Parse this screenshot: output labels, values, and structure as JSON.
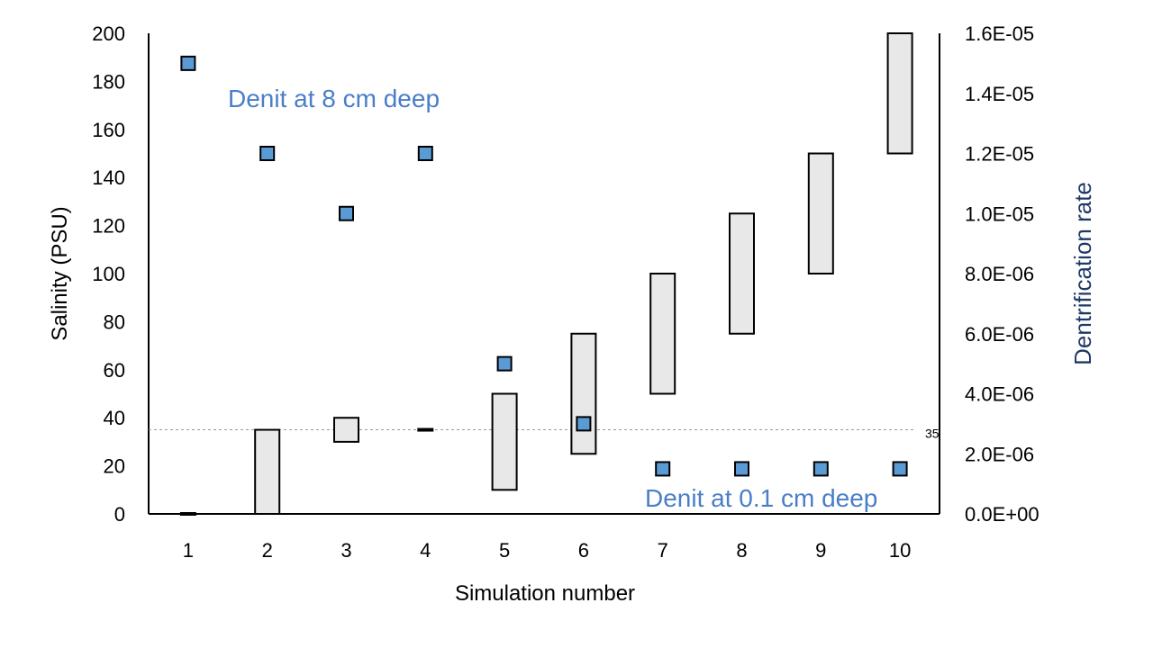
{
  "chart_data": {
    "type": "bar",
    "title": "",
    "xlabel": "Simulation number",
    "ylabel": "Salinity (PSU)",
    "y2label": "Dentrification rate",
    "categories": [
      "1",
      "2",
      "3",
      "4",
      "5",
      "6",
      "7",
      "8",
      "9",
      "10"
    ],
    "ylim": [
      0,
      200
    ],
    "y2lim": [
      0,
      1.6e-05
    ],
    "yticks": [
      "0",
      "20",
      "40",
      "60",
      "80",
      "100",
      "120",
      "140",
      "160",
      "180",
      "200"
    ],
    "y2ticks": [
      "0.0E+00",
      "2.0E-06",
      "4.0E-06",
      "6.0E-06",
      "8.0E-06",
      "1.0E-05",
      "1.2E-05",
      "1.4E-05",
      "1.6E-05"
    ],
    "grid": false,
    "salinity_ranges": [
      {
        "x": "1",
        "low": 0,
        "high": 0
      },
      {
        "x": "2",
        "low": 0,
        "high": 35
      },
      {
        "x": "3",
        "low": 30,
        "high": 40
      },
      {
        "x": "4",
        "low": 35,
        "high": 35
      },
      {
        "x": "5",
        "low": 10,
        "high": 50
      },
      {
        "x": "6",
        "low": 25,
        "high": 75
      },
      {
        "x": "7",
        "low": 50,
        "high": 100
      },
      {
        "x": "8",
        "low": 75,
        "high": 125
      },
      {
        "x": "9",
        "low": 100,
        "high": 150
      },
      {
        "x": "10",
        "low": 150,
        "high": 200
      }
    ],
    "denitrification_rate": [
      1.5e-05,
      1.2e-05,
      1e-05,
      1.2e-05,
      5e-06,
      3e-06,
      1.5e-06,
      1.5e-06,
      1.5e-06,
      1.5e-06
    ],
    "reference_line": {
      "value": 35,
      "label": "35"
    },
    "annotations": [
      "Denit at 8 cm deep",
      "Denit at 0.1 cm deep"
    ],
    "colors": {
      "bar_fill": "#e8e8e8",
      "bar_stroke": "#000000",
      "marker_fill": "#5b9bd5",
      "marker_stroke": "#000000",
      "annotation": "#4a7ec8",
      "right_axis_title": "#1f3864",
      "reference_line": "#999999"
    }
  }
}
